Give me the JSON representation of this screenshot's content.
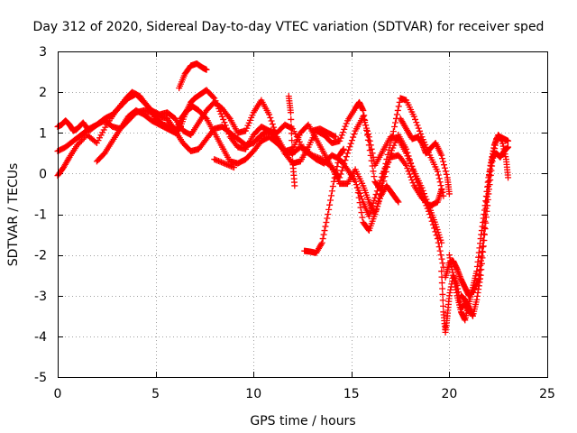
{
  "chart_data": {
    "type": "scatter",
    "title": "Day 312 of 2020, Sidereal Day-to-day VTEC variation (SDTVAR) for receiver sped",
    "xlabel": "GPS time / hours",
    "ylabel": "SDTVAR / TECUs",
    "xlim": [
      0,
      25
    ],
    "ylim": [
      -5,
      3
    ],
    "xticks": [
      0,
      5,
      10,
      15,
      20,
      25
    ],
    "yticks": [
      -5,
      -4,
      -3,
      -2,
      -1,
      0,
      1,
      2,
      3
    ],
    "grid": true,
    "marker": "plus",
    "color": "#ff0000",
    "series": [
      {
        "name": "trace-1",
        "points": [
          [
            0.0,
            1.15
          ],
          [
            0.2,
            1.2
          ],
          [
            0.4,
            1.3
          ],
          [
            0.6,
            1.2
          ],
          [
            0.8,
            1.05
          ],
          [
            1.0,
            1.1
          ],
          [
            1.3,
            1.25
          ],
          [
            1.6,
            1.05
          ],
          [
            2.0,
            1.2
          ],
          [
            2.4,
            1.35
          ],
          [
            2.8,
            1.45
          ],
          [
            3.2,
            1.65
          ],
          [
            3.6,
            1.85
          ],
          [
            4.0,
            1.95
          ],
          [
            4.4,
            1.75
          ],
          [
            4.8,
            1.55
          ],
          [
            5.2,
            1.45
          ],
          [
            5.6,
            1.5
          ],
          [
            6.0,
            1.35
          ],
          [
            6.4,
            1.05
          ],
          [
            6.8,
            0.95
          ],
          [
            7.2,
            1.25
          ],
          [
            7.6,
            1.55
          ],
          [
            8.0,
            1.75
          ],
          [
            8.4,
            1.6
          ],
          [
            8.8,
            1.35
          ],
          [
            9.2,
            1.0
          ],
          [
            9.6,
            1.05
          ],
          [
            10.0,
            1.5
          ],
          [
            10.4,
            1.8
          ],
          [
            10.8,
            1.45
          ],
          [
            11.2,
            0.9
          ],
          [
            11.6,
            0.55
          ],
          [
            12.0,
            0.5
          ],
          [
            12.4,
            0.65
          ],
          [
            12.8,
            0.5
          ],
          [
            13.2,
            0.35
          ],
          [
            13.6,
            0.25
          ],
          [
            14.0,
            0.45
          ],
          [
            14.4,
            0.35
          ],
          [
            14.8,
            0.1
          ],
          [
            15.2,
            -0.2
          ],
          [
            15.6,
            -0.7
          ],
          [
            15.9,
            -1.05
          ],
          [
            16.2,
            -0.6
          ],
          [
            16.6,
            0.0
          ],
          [
            17.0,
            0.4
          ],
          [
            17.4,
            0.45
          ],
          [
            17.8,
            0.2
          ],
          [
            18.2,
            -0.3
          ],
          [
            18.6,
            -0.6
          ],
          [
            19.0,
            -0.8
          ],
          [
            19.4,
            -0.7
          ],
          [
            19.6,
            -0.4
          ]
        ]
      },
      {
        "name": "trace-2",
        "points": [
          [
            0.0,
            0.55
          ],
          [
            0.4,
            0.65
          ],
          [
            0.8,
            0.8
          ],
          [
            1.2,
            0.95
          ],
          [
            1.6,
            1.1
          ],
          [
            2.0,
            1.2
          ],
          [
            2.4,
            1.3
          ],
          [
            2.8,
            1.15
          ],
          [
            3.2,
            1.1
          ],
          [
            3.6,
            1.3
          ],
          [
            4.0,
            1.5
          ],
          [
            4.4,
            1.55
          ],
          [
            4.8,
            1.5
          ],
          [
            5.2,
            1.4
          ],
          [
            5.6,
            1.35
          ],
          [
            6.0,
            1.05
          ],
          [
            6.4,
            0.75
          ],
          [
            6.8,
            0.55
          ],
          [
            7.2,
            0.6
          ],
          [
            7.6,
            0.85
          ],
          [
            8.0,
            1.1
          ],
          [
            8.4,
            1.15
          ],
          [
            8.8,
            1.0
          ],
          [
            9.2,
            0.85
          ],
          [
            9.6,
            0.7
          ],
          [
            10.0,
            0.75
          ],
          [
            10.4,
            0.95
          ],
          [
            10.8,
            1.05
          ],
          [
            11.2,
            0.85
          ],
          [
            11.6,
            0.5
          ],
          [
            12.0,
            0.25
          ],
          [
            12.4,
            0.3
          ],
          [
            12.8,
            0.65
          ],
          [
            13.2,
            1.05
          ],
          [
            13.6,
            0.95
          ],
          [
            14.0,
            0.75
          ],
          [
            14.4,
            0.8
          ],
          [
            14.8,
            1.3
          ],
          [
            15.2,
            1.6
          ],
          [
            15.4,
            1.75
          ],
          [
            15.6,
            1.55
          ],
          [
            15.9,
            0.7
          ],
          [
            16.2,
            -0.2
          ],
          [
            16.5,
            -0.4
          ],
          [
            16.8,
            0.35
          ],
          [
            17.2,
            1.15
          ],
          [
            17.5,
            1.85
          ],
          [
            17.8,
            1.8
          ],
          [
            18.2,
            1.4
          ],
          [
            18.6,
            0.9
          ],
          [
            19.0,
            0.45
          ],
          [
            19.4,
            0.05
          ],
          [
            19.7,
            -0.55
          ]
        ]
      },
      {
        "name": "trace-3",
        "points": [
          [
            0.0,
            -0.05
          ],
          [
            0.3,
            0.15
          ],
          [
            0.6,
            0.4
          ],
          [
            1.0,
            0.7
          ],
          [
            1.5,
            0.95
          ],
          [
            2.0,
            0.75
          ],
          [
            2.5,
            1.2
          ],
          [
            3.0,
            1.55
          ],
          [
            3.5,
            1.85
          ],
          [
            3.8,
            2.0
          ],
          [
            4.2,
            1.9
          ],
          [
            4.6,
            1.65
          ],
          [
            5.0,
            1.35
          ],
          [
            5.4,
            1.2
          ],
          [
            5.8,
            1.15
          ],
          [
            6.2,
            1.05
          ],
          [
            6.5,
            1.45
          ],
          [
            6.8,
            1.75
          ],
          [
            7.0,
            1.85
          ],
          [
            7.3,
            1.95
          ],
          [
            7.6,
            2.05
          ],
          [
            8.0,
            1.85
          ],
          [
            8.4,
            1.4
          ],
          [
            8.8,
            0.9
          ],
          [
            9.2,
            0.65
          ],
          [
            9.6,
            0.6
          ],
          [
            10.0,
            0.95
          ],
          [
            10.4,
            1.15
          ],
          [
            10.8,
            1.05
          ],
          [
            11.2,
            1.0
          ],
          [
            11.6,
            1.2
          ],
          [
            12.0,
            1.1
          ],
          [
            12.5,
            0.65
          ],
          [
            13.0,
            0.45
          ],
          [
            13.5,
            0.35
          ],
          [
            14.0,
            0.15
          ],
          [
            14.4,
            -0.25
          ],
          [
            14.8,
            -0.25
          ],
          [
            15.2,
            0.1
          ],
          [
            15.6,
            -0.3
          ],
          [
            15.9,
            -0.7
          ],
          [
            16.2,
            -1.0
          ],
          [
            16.6,
            -0.3
          ],
          [
            17.0,
            0.5
          ],
          [
            17.4,
            0.95
          ],
          [
            17.8,
            0.6
          ],
          [
            18.2,
            0.0
          ],
          [
            18.6,
            -0.5
          ],
          [
            19.0,
            -1.0
          ],
          [
            19.4,
            -1.6
          ],
          [
            19.7,
            -2.3
          ]
        ]
      },
      {
        "name": "trace-4",
        "points": [
          [
            2.0,
            0.3
          ],
          [
            2.4,
            0.5
          ],
          [
            2.8,
            0.8
          ],
          [
            3.2,
            1.1
          ],
          [
            3.6,
            1.4
          ],
          [
            4.0,
            1.55
          ],
          [
            4.4,
            1.45
          ],
          [
            4.8,
            1.3
          ],
          [
            5.2,
            1.2
          ],
          [
            5.6,
            1.1
          ],
          [
            6.0,
            1.0
          ],
          [
            6.3,
            1.35
          ],
          [
            6.6,
            1.55
          ],
          [
            6.9,
            1.65
          ],
          [
            7.2,
            1.55
          ],
          [
            7.6,
            1.35
          ],
          [
            8.0,
            1.0
          ],
          [
            8.4,
            0.65
          ],
          [
            8.8,
            0.3
          ],
          [
            9.2,
            0.25
          ],
          [
            9.6,
            0.35
          ],
          [
            10.0,
            0.55
          ],
          [
            10.4,
            0.8
          ],
          [
            10.8,
            0.9
          ],
          [
            11.2,
            0.75
          ],
          [
            11.6,
            0.55
          ],
          [
            12.0,
            0.6
          ],
          [
            12.4,
            1.0
          ],
          [
            12.8,
            1.2
          ],
          [
            13.2,
            0.85
          ],
          [
            13.6,
            0.5
          ],
          [
            14.0,
            0.15
          ],
          [
            14.4,
            -0.1
          ],
          [
            14.8,
            0.5
          ],
          [
            15.2,
            1.05
          ],
          [
            15.6,
            1.4
          ],
          [
            15.9,
            0.9
          ],
          [
            16.2,
            0.2
          ],
          [
            16.6,
            0.55
          ],
          [
            17.0,
            0.9
          ],
          [
            17.4,
            0.85
          ],
          [
            17.8,
            0.5
          ],
          [
            18.2,
            0.05
          ],
          [
            18.6,
            -0.35
          ],
          [
            19.0,
            -0.85
          ],
          [
            19.3,
            -1.25
          ],
          [
            19.6,
            -1.7
          ]
        ]
      },
      {
        "name": "trace-5",
        "points": [
          [
            6.2,
            2.1
          ],
          [
            6.5,
            2.45
          ],
          [
            6.8,
            2.65
          ],
          [
            7.1,
            2.7
          ],
          [
            7.4,
            2.6
          ],
          [
            7.6,
            2.55
          ]
        ]
      },
      {
        "name": "trace-6",
        "points": [
          [
            8.0,
            0.35
          ],
          [
            8.5,
            0.25
          ],
          [
            9.0,
            0.15
          ]
        ]
      },
      {
        "name": "trace-7",
        "points": [
          [
            11.8,
            1.9
          ],
          [
            11.9,
            1.5
          ],
          [
            12.0,
            0.3
          ],
          [
            12.1,
            -0.3
          ]
        ]
      },
      {
        "name": "trace-8",
        "points": [
          [
            13.0,
            1.05
          ],
          [
            13.4,
            1.1
          ],
          [
            13.8,
            1.0
          ],
          [
            14.2,
            0.9
          ]
        ]
      },
      {
        "name": "trace-9",
        "points": [
          [
            12.6,
            -1.9
          ],
          [
            12.9,
            -1.92
          ],
          [
            13.2,
            -1.95
          ],
          [
            13.5,
            -1.7
          ],
          [
            13.8,
            -1.0
          ],
          [
            14.1,
            -0.2
          ],
          [
            14.4,
            0.45
          ],
          [
            14.6,
            0.6
          ]
        ]
      },
      {
        "name": "trace-10",
        "points": [
          [
            15.3,
            -0.35
          ],
          [
            15.6,
            -1.2
          ],
          [
            15.9,
            -1.4
          ],
          [
            16.2,
            -1.0
          ],
          [
            16.5,
            -0.55
          ],
          [
            16.8,
            -0.3
          ],
          [
            17.1,
            -0.5
          ],
          [
            17.4,
            -0.7
          ]
        ]
      },
      {
        "name": "trace-11",
        "points": [
          [
            17.5,
            1.35
          ],
          [
            17.8,
            1.1
          ],
          [
            18.1,
            0.85
          ],
          [
            18.4,
            0.9
          ],
          [
            18.6,
            0.75
          ],
          [
            18.8,
            0.5
          ],
          [
            19.0,
            0.6
          ],
          [
            19.3,
            0.75
          ],
          [
            19.6,
            0.45
          ],
          [
            19.9,
            -0.1
          ],
          [
            20.0,
            -0.5
          ]
        ]
      },
      {
        "name": "trace-12",
        "points": [
          [
            19.6,
            -2.4
          ],
          [
            19.7,
            -3.4
          ],
          [
            19.8,
            -3.9
          ],
          [
            19.9,
            -3.5
          ],
          [
            20.0,
            -3.0
          ],
          [
            20.2,
            -2.5
          ],
          [
            20.4,
            -2.75
          ],
          [
            20.6,
            -3.3
          ],
          [
            20.8,
            -3.2
          ],
          [
            21.0,
            -3.4
          ]
        ]
      },
      {
        "name": "trace-13",
        "points": [
          [
            19.8,
            -2.55
          ],
          [
            20.0,
            -2.2
          ],
          [
            20.2,
            -2.15
          ],
          [
            20.4,
            -2.35
          ],
          [
            20.6,
            -2.6
          ],
          [
            20.8,
            -2.8
          ],
          [
            21.0,
            -3.0
          ],
          [
            21.2,
            -2.9
          ],
          [
            21.5,
            -2.6
          ],
          [
            21.7,
            -1.8
          ],
          [
            21.9,
            -0.7
          ],
          [
            22.1,
            0.2
          ],
          [
            22.3,
            0.7
          ],
          [
            22.5,
            0.95
          ],
          [
            22.7,
            0.8
          ],
          [
            22.9,
            0.35
          ],
          [
            23.0,
            -0.1
          ]
        ]
      },
      {
        "name": "trace-14",
        "points": [
          [
            20.0,
            -2.0
          ],
          [
            20.2,
            -2.5
          ],
          [
            20.4,
            -3.0
          ],
          [
            20.6,
            -3.4
          ],
          [
            20.8,
            -3.6
          ],
          [
            21.0,
            -3.2
          ],
          [
            21.2,
            -2.8
          ],
          [
            21.4,
            -2.4
          ],
          [
            21.6,
            -1.6
          ],
          [
            21.8,
            -0.9
          ],
          [
            22.0,
            -0.1
          ],
          [
            22.2,
            0.4
          ],
          [
            22.4,
            0.5
          ],
          [
            22.6,
            0.4
          ],
          [
            22.8,
            0.55
          ],
          [
            23.0,
            0.65
          ]
        ]
      },
      {
        "name": "trace-15",
        "points": [
          [
            20.6,
            -3.0
          ],
          [
            20.8,
            -3.1
          ],
          [
            21.0,
            -3.3
          ],
          [
            21.2,
            -3.5
          ],
          [
            21.4,
            -3.1
          ],
          [
            21.6,
            -2.5
          ],
          [
            21.8,
            -1.5
          ],
          [
            22.0,
            -0.5
          ],
          [
            22.2,
            0.3
          ],
          [
            22.4,
            0.85
          ],
          [
            22.6,
            0.9
          ],
          [
            22.8,
            0.85
          ],
          [
            23.0,
            0.8
          ]
        ]
      }
    ]
  }
}
